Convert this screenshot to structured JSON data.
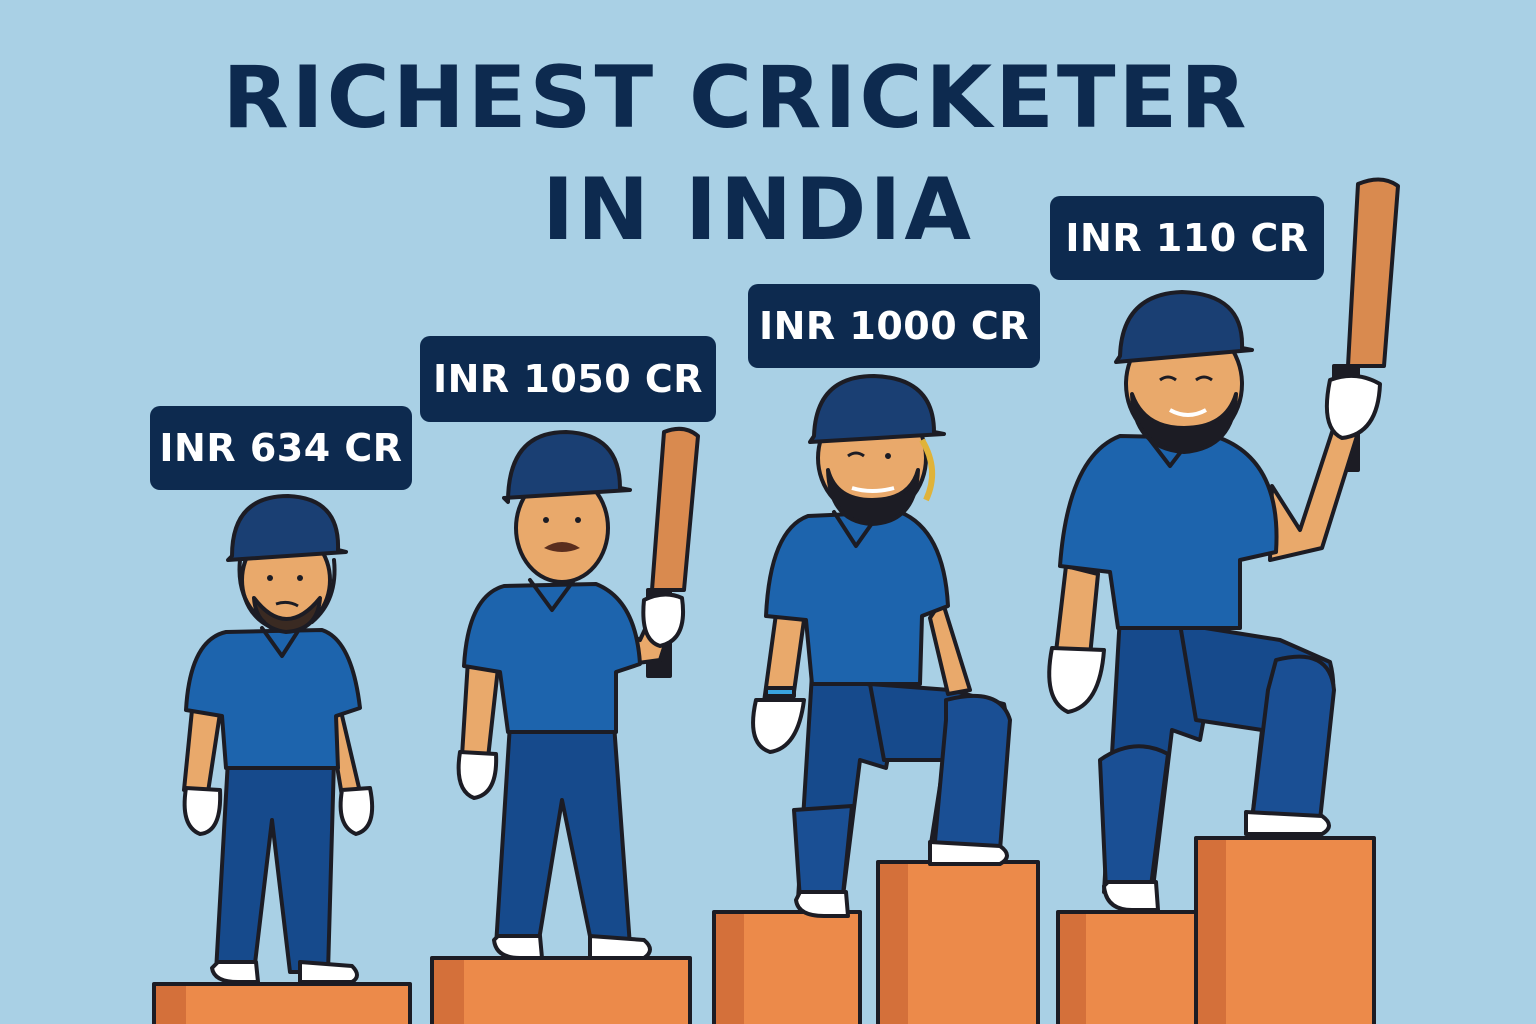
{
  "title": {
    "line1": "RICHEST CRICKETER",
    "line2": "IN INDIA"
  },
  "players": [
    {
      "label": "INR 634 CR"
    },
    {
      "label": "INR 1050 CR"
    },
    {
      "label": "INR 1000 CR"
    },
    {
      "label": "INR 110 CR"
    }
  ],
  "colors": {
    "background": "#a9d0e5",
    "title": "#0d2a4f",
    "tag": "#0d2a4f",
    "jersey": "#1d64ad",
    "trousers": "#164a8c",
    "helmet": "#1a3f73",
    "skin": "#e9a96b",
    "podium": "#ec8a4a",
    "bat": "#d98a4f"
  }
}
